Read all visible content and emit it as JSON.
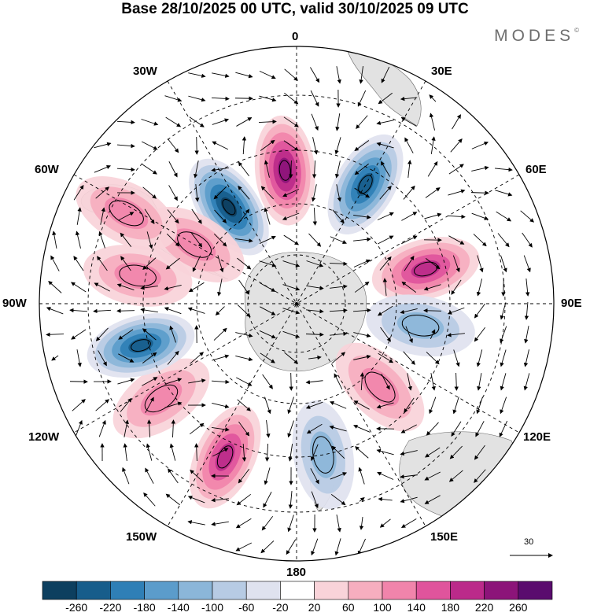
{
  "title": "Base 28/10/2025 00 UTC, valid 30/10/2025 09 UTC",
  "logo": "MODES",
  "logo_mark": "©",
  "longitude_labels": {
    "n0": "0",
    "n30e": "30E",
    "n60e": "60E",
    "n90e": "90E",
    "n120e": "120E",
    "n150e": "150E",
    "n180": "180",
    "n150w": "150W",
    "n120w": "120W",
    "n90w": "90W",
    "n60w": "60W",
    "n30w": "30W"
  },
  "wind_reference_value": "30",
  "colorbar": {
    "colors": [
      "#0d3f5f",
      "#175d8b",
      "#2f7fb6",
      "#5b9ccb",
      "#8bb6d9",
      "#b7cbe4",
      "#dfe2ef",
      "#ffffff",
      "#f9d3d9",
      "#f6aebf",
      "#f184ab",
      "#e0549c",
      "#bb2a8a",
      "#8c1479",
      "#5a0c6e"
    ],
    "tick_labels": [
      "-260",
      "-220",
      "-180",
      "-140",
      "-100",
      "-60",
      "-20",
      "20",
      "60",
      "100",
      "140",
      "180",
      "220",
      "260"
    ]
  },
  "anomaly_field": {
    "cells": [
      {
        "lon": 35,
        "lat_r": 150,
        "value": -260,
        "name": "anomaly-low-30w"
      },
      {
        "lon": 5,
        "lat_r": 170,
        "value": 240,
        "name": "anomaly-high-0"
      },
      {
        "lon": -30,
        "lat_r": 175,
        "value": -250,
        "name": "anomaly-low-30e"
      },
      {
        "lon": -75,
        "lat_r": 170,
        "value": 200,
        "name": "anomaly-high-90e"
      },
      {
        "lon": -100,
        "lat_r": 160,
        "value": -100,
        "name": "anomaly-low-100e"
      },
      {
        "lon": -135,
        "lat_r": 150,
        "value": 120,
        "name": "anomaly-high-140e"
      },
      {
        "lon": -170,
        "lat_r": 195,
        "value": -130,
        "name": "anomaly-low-165e"
      },
      {
        "lon": 155,
        "lat_r": 215,
        "value": 180,
        "name": "anomaly-high-155w"
      },
      {
        "lon": 125,
        "lat_r": 210,
        "value": 120,
        "name": "anomaly-high-125w"
      },
      {
        "lon": 105,
        "lat_r": 205,
        "value": -250,
        "name": "anomaly-low-110w"
      },
      {
        "lon": 80,
        "lat_r": 205,
        "value": 110,
        "name": "anomaly-high-85w"
      },
      {
        "lon": 60,
        "lat_r": 150,
        "value": 130,
        "name": "anomaly-high-60w"
      },
      {
        "lon": 62,
        "lat_r": 245,
        "value": 110,
        "name": "anomaly-high-65w"
      }
    ]
  }
}
